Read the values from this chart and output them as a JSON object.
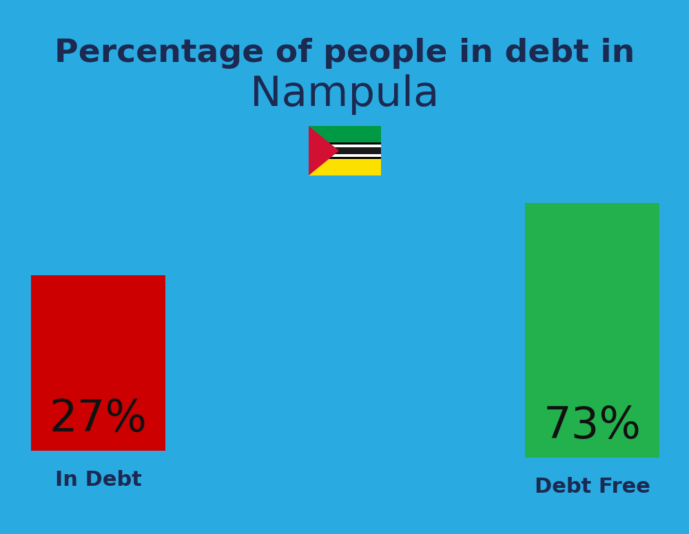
{
  "title_line1": "Percentage of people in debt in",
  "title_line2": "Nampula",
  "background_color": "#29ABE2",
  "bar1_label": "27%",
  "bar1_color": "#CC0000",
  "bar1_caption": "In Debt",
  "bar2_label": "73%",
  "bar2_color": "#22B14C",
  "bar2_caption": "Debt Free",
  "title_color": "#1C2951",
  "label_color": "#111111",
  "caption_color": "#1C2951",
  "title_fontsize": 34,
  "subtitle_fontsize": 44,
  "bar_label_fontsize": 46,
  "caption_fontsize": 22
}
